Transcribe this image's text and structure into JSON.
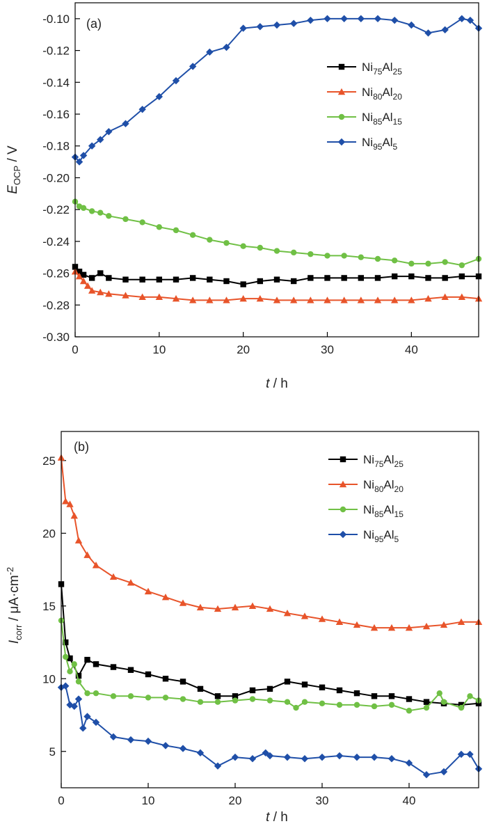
{
  "figure": {
    "panels": [
      {
        "panel_label": "(a)",
        "xlabel": {
          "var": "t",
          "unit": " / h"
        },
        "ylabel": {
          "var": "E",
          "sub": "OCP",
          "unit": " / V"
        },
        "x_ticks": [
          "0",
          "10",
          "20",
          "30",
          "40"
        ],
        "y_ticks": [
          "-0.30",
          "-0.28",
          "-0.26",
          "-0.24",
          "-0.22",
          "-0.20",
          "-0.18",
          "-0.16",
          "-0.14",
          "-0.12",
          "-0.10"
        ]
      },
      {
        "panel_label": "(b)",
        "xlabel": {
          "var": "t",
          "unit": " / h"
        },
        "ylabel": {
          "var": "I",
          "sub": "corr",
          "unit": " / μA·cm",
          "sup": "-2"
        },
        "x_ticks": [
          "0",
          "10",
          "20",
          "30",
          "40"
        ],
        "y_ticks": [
          "5",
          "10",
          "15",
          "20",
          "25"
        ]
      }
    ],
    "legend": [
      {
        "ni": "Ni",
        "ni_sub": "75",
        "al": "Al",
        "al_sub": "25"
      },
      {
        "ni": "Ni",
        "ni_sub": "80",
        "al": "Al",
        "al_sub": "20"
      },
      {
        "ni": "Ni",
        "ni_sub": "85",
        "al": "Al",
        "al_sub": "15"
      },
      {
        "ni": "Ni",
        "ni_sub": "95",
        "al": "Al",
        "al_sub": "5"
      }
    ]
  },
  "chart_data": [
    {
      "type": "line",
      "title": "",
      "panel": "(a)",
      "xlabel": "t / h",
      "ylabel": "E_OCP / V",
      "xlim": [
        0,
        48
      ],
      "ylim": [
        -0.3,
        -0.09
      ],
      "grid": false,
      "legend_position": "top-right",
      "series": [
        {
          "name": "Ni75Al25",
          "color": "#000000",
          "marker": "square",
          "x": [
            0,
            0.5,
            1,
            2,
            3,
            4,
            6,
            8,
            10,
            12,
            14,
            16,
            18,
            20,
            22,
            24,
            26,
            28,
            30,
            32,
            34,
            36,
            38,
            40,
            42,
            44,
            46,
            48
          ],
          "y": [
            -0.256,
            -0.259,
            -0.261,
            -0.263,
            -0.26,
            -0.263,
            -0.264,
            -0.264,
            -0.264,
            -0.264,
            -0.263,
            -0.264,
            -0.265,
            -0.267,
            -0.265,
            -0.264,
            -0.265,
            -0.263,
            -0.263,
            -0.263,
            -0.263,
            -0.263,
            -0.262,
            -0.262,
            -0.263,
            -0.263,
            -0.262,
            -0.262
          ]
        },
        {
          "name": "Ni80Al20",
          "color": "#E8542A",
          "marker": "triangle",
          "x": [
            0,
            0.5,
            1,
            1.5,
            2,
            3,
            4,
            6,
            8,
            10,
            12,
            14,
            16,
            18,
            20,
            22,
            24,
            26,
            28,
            30,
            32,
            34,
            36,
            38,
            40,
            42,
            44,
            46,
            48
          ],
          "y": [
            -0.259,
            -0.262,
            -0.265,
            -0.268,
            -0.271,
            -0.272,
            -0.273,
            -0.274,
            -0.275,
            -0.275,
            -0.276,
            -0.277,
            -0.277,
            -0.277,
            -0.276,
            -0.276,
            -0.277,
            -0.277,
            -0.277,
            -0.277,
            -0.277,
            -0.277,
            -0.277,
            -0.277,
            -0.277,
            -0.276,
            -0.275,
            -0.275,
            -0.276
          ]
        },
        {
          "name": "Ni85Al15",
          "color": "#70C045",
          "marker": "circle",
          "x": [
            0,
            0.5,
            1,
            2,
            3,
            4,
            6,
            8,
            10,
            12,
            14,
            16,
            18,
            20,
            22,
            24,
            26,
            28,
            30,
            32,
            34,
            36,
            38,
            40,
            42,
            44,
            46,
            48
          ],
          "y": [
            -0.215,
            -0.218,
            -0.219,
            -0.221,
            -0.222,
            -0.224,
            -0.226,
            -0.228,
            -0.231,
            -0.233,
            -0.236,
            -0.239,
            -0.241,
            -0.243,
            -0.244,
            -0.246,
            -0.247,
            -0.248,
            -0.249,
            -0.249,
            -0.25,
            -0.251,
            -0.252,
            -0.254,
            -0.254,
            -0.253,
            -0.255,
            -0.251
          ]
        },
        {
          "name": "Ni95Al5",
          "color": "#1F4FA8",
          "marker": "diamond",
          "x": [
            0,
            0.5,
            1,
            2,
            3,
            4,
            6,
            8,
            10,
            12,
            14,
            16,
            18,
            20,
            22,
            24,
            26,
            28,
            30,
            32,
            34,
            36,
            38,
            40,
            42,
            44,
            46,
            47,
            48
          ],
          "y": [
            -0.187,
            -0.19,
            -0.186,
            -0.18,
            -0.176,
            -0.171,
            -0.166,
            -0.157,
            -0.149,
            -0.139,
            -0.13,
            -0.121,
            -0.118,
            -0.106,
            -0.105,
            -0.104,
            -0.103,
            -0.101,
            -0.1,
            -0.1,
            -0.1,
            -0.1,
            -0.101,
            -0.104,
            -0.109,
            -0.107,
            -0.1,
            -0.101,
            -0.106
          ]
        }
      ]
    },
    {
      "type": "line",
      "title": "",
      "panel": "(b)",
      "xlabel": "t / h",
      "ylabel": "I_corr / μA·cm^-2",
      "xlim": [
        0,
        48
      ],
      "ylim": [
        2.5,
        27
      ],
      "grid": false,
      "legend_position": "top-right",
      "series": [
        {
          "name": "Ni75Al25",
          "color": "#000000",
          "marker": "square",
          "x": [
            0,
            0.5,
            1,
            2,
            3,
            4,
            6,
            8,
            10,
            12,
            14,
            16,
            18,
            20,
            22,
            24,
            26,
            28,
            30,
            32,
            34,
            36,
            38,
            40,
            42,
            44,
            46,
            48
          ],
          "y": [
            16.5,
            12.5,
            11.4,
            10.2,
            11.3,
            11.0,
            10.8,
            10.6,
            10.3,
            10.0,
            9.8,
            9.3,
            8.8,
            8.8,
            9.2,
            9.3,
            9.8,
            9.6,
            9.4,
            9.2,
            9.0,
            8.8,
            8.8,
            8.6,
            8.4,
            8.3,
            8.2,
            8.3
          ]
        },
        {
          "name": "Ni80Al20",
          "color": "#E8542A",
          "marker": "triangle",
          "x": [
            0,
            0.5,
            1,
            1.5,
            2,
            3,
            4,
            6,
            8,
            10,
            12,
            14,
            16,
            18,
            20,
            22,
            24,
            26,
            28,
            30,
            32,
            34,
            36,
            38,
            40,
            42,
            44,
            46,
            48
          ],
          "y": [
            25.2,
            22.2,
            22.0,
            21.2,
            19.5,
            18.5,
            17.8,
            17.0,
            16.6,
            16.0,
            15.6,
            15.2,
            14.9,
            14.8,
            14.9,
            15.0,
            14.8,
            14.5,
            14.3,
            14.1,
            13.9,
            13.7,
            13.5,
            13.5,
            13.5,
            13.6,
            13.7,
            13.9,
            13.9
          ]
        },
        {
          "name": "Ni85Al15",
          "color": "#70C045",
          "marker": "circle",
          "x": [
            0,
            0.5,
            1,
            1.5,
            2,
            3,
            4,
            6,
            8,
            10,
            12,
            14,
            16,
            18,
            20,
            22,
            24,
            26,
            27,
            28,
            30,
            32,
            34,
            36,
            38,
            40,
            42,
            43.5,
            44,
            46,
            47,
            48
          ],
          "y": [
            14.0,
            11.5,
            10.5,
            11.0,
            9.8,
            9.0,
            9.0,
            8.8,
            8.8,
            8.7,
            8.7,
            8.6,
            8.4,
            8.4,
            8.5,
            8.6,
            8.5,
            8.4,
            8.0,
            8.4,
            8.3,
            8.2,
            8.2,
            8.1,
            8.2,
            7.8,
            8.0,
            9.0,
            8.4,
            8.0,
            8.8,
            8.5
          ]
        },
        {
          "name": "Ni95Al5",
          "color": "#1F4FA8",
          "marker": "diamond",
          "x": [
            0,
            0.5,
            1,
            1.5,
            2,
            2.5,
            3,
            4,
            6,
            8,
            10,
            12,
            14,
            16,
            18,
            20,
            22,
            23.5,
            24,
            26,
            28,
            30,
            32,
            34,
            36,
            38,
            40,
            42,
            44,
            46,
            47,
            48
          ],
          "y": [
            9.4,
            9.5,
            8.2,
            8.1,
            8.6,
            6.6,
            7.4,
            7.0,
            6.0,
            5.8,
            5.7,
            5.4,
            5.2,
            4.9,
            4.0,
            4.6,
            4.5,
            4.9,
            4.7,
            4.6,
            4.5,
            4.6,
            4.7,
            4.6,
            4.6,
            4.5,
            4.2,
            3.4,
            3.6,
            4.8,
            4.8,
            3.8
          ]
        }
      ]
    }
  ]
}
